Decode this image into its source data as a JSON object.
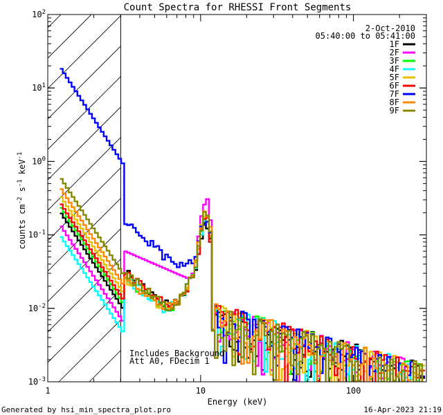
{
  "chart_data": {
    "type": "line",
    "title": "Count Spectra for RHESSI Front Segments",
    "xlabel": "Energy (keV)",
    "ylabel_parts": [
      "counts cm",
      "-2",
      " s",
      "-1",
      " keV",
      "-1"
    ],
    "xscale": "log",
    "yscale": "log",
    "xlim": [
      1,
      300
    ],
    "ylim": [
      0.001,
      100
    ],
    "x_tick_labels": [
      {
        "v": 1,
        "t": "1"
      },
      {
        "v": 10,
        "t": "10"
      },
      {
        "v": 100,
        "t": "100"
      }
    ],
    "y_tick_labels": [
      {
        "v": 0.001,
        "b": "10",
        "e": "-3"
      },
      {
        "v": 0.01,
        "b": "10",
        "e": "-2"
      },
      {
        "v": 0.1,
        "b": "10",
        "e": "-1"
      },
      {
        "v": 1,
        "b": "10",
        "e": "0"
      },
      {
        "v": 10,
        "b": "10",
        "e": "1"
      },
      {
        "v": 100,
        "b": "10",
        "e": "2"
      }
    ],
    "date": "2-Oct-2010",
    "time_range": "05:40:00 to 05:41:00",
    "annotation_lines": [
      "Includes Background",
      "Att A0, FDecim 1"
    ],
    "hatched_region": {
      "x_start": 1,
      "x_end": 3
    },
    "legend_position": "top-right",
    "series": [
      {
        "name": "1F",
        "color": "#000000",
        "a": 0.21,
        "p": 0.9,
        "w": 0.12,
        "f": 1.0
      },
      {
        "name": "2F",
        "color": "#ff00ff",
        "a": 0.14,
        "p": 0.45,
        "w": 0.05,
        "f": 2.8
      },
      {
        "name": "3F",
        "color": "#00ff00",
        "a": 0.25,
        "p": 0.75,
        "w": 0.1,
        "f": 1.3
      },
      {
        "name": "4F",
        "color": "#00ffff",
        "a": 0.1,
        "p": 0.75,
        "w": 0.12,
        "f": 1.0
      },
      {
        "name": "5F",
        "color": "#e6c000",
        "a": 0.35,
        "p": 0.75,
        "w": 0.09,
        "f": 1.6
      },
      {
        "name": "6F",
        "color": "#ff0000",
        "a": 0.28,
        "p": 0.85,
        "w": 0.11,
        "f": 1.2
      },
      {
        "name": "7F",
        "color": "#0000ff",
        "a": 19.5,
        "p": 4.0,
        "w": 0.2,
        "f": 1.1
      },
      {
        "name": "8F",
        "color": "#ff8800",
        "a": 0.45,
        "p": 0.75,
        "w": 0.08,
        "f": 1.8
      },
      {
        "name": "9F",
        "color": "#888800",
        "a": 0.62,
        "p": 0.85,
        "w": 0.15,
        "f": 1.5
      }
    ]
  },
  "footer": {
    "left": "Generated by hsi_min_spectra_plot.pro",
    "right": "16-Apr-2023 21:19"
  }
}
